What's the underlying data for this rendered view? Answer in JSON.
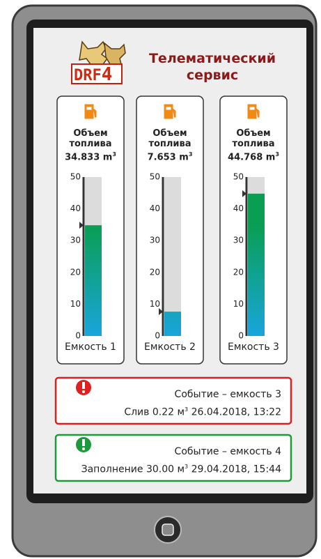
{
  "header": {
    "logo_text": "DRF",
    "logo_number": "4",
    "title": "Телематический сервис"
  },
  "tanks": [
    {
      "label": "Объем топлива",
      "value": 34.833,
      "unit": "m",
      "unit_exp": "3",
      "ylim": [
        0,
        50
      ],
      "yticks": [
        0,
        10,
        20,
        30,
        40,
        50
      ],
      "caption": "Емкость 1"
    },
    {
      "label": "Объем топлива",
      "value": 7.653,
      "unit": "m",
      "unit_exp": "3",
      "ylim": [
        0,
        50
      ],
      "yticks": [
        0,
        10,
        20,
        30,
        40,
        50
      ],
      "caption": "Емкость 2"
    },
    {
      "label": "Объем топлива",
      "value": 44.768,
      "unit": "m",
      "unit_exp": "3",
      "ylim": [
        0,
        50
      ],
      "yticks": [
        0,
        10,
        20,
        30,
        40,
        50
      ],
      "caption": "Емкость 3"
    }
  ],
  "events": [
    {
      "title": "Событие – емкость 3",
      "action": "Слив",
      "amount": "0.22",
      "unit": "м",
      "unit_exp": "3",
      "datetime": "26.04.2018, 13:22",
      "color": "#e02020"
    },
    {
      "title": "Событие – емкость 4",
      "action": "Заполнение",
      "amount": "30.00",
      "unit": "м",
      "unit_exp": "3",
      "datetime": "29.04.2018, 15:44",
      "color": "#1a9a3a"
    }
  ]
}
